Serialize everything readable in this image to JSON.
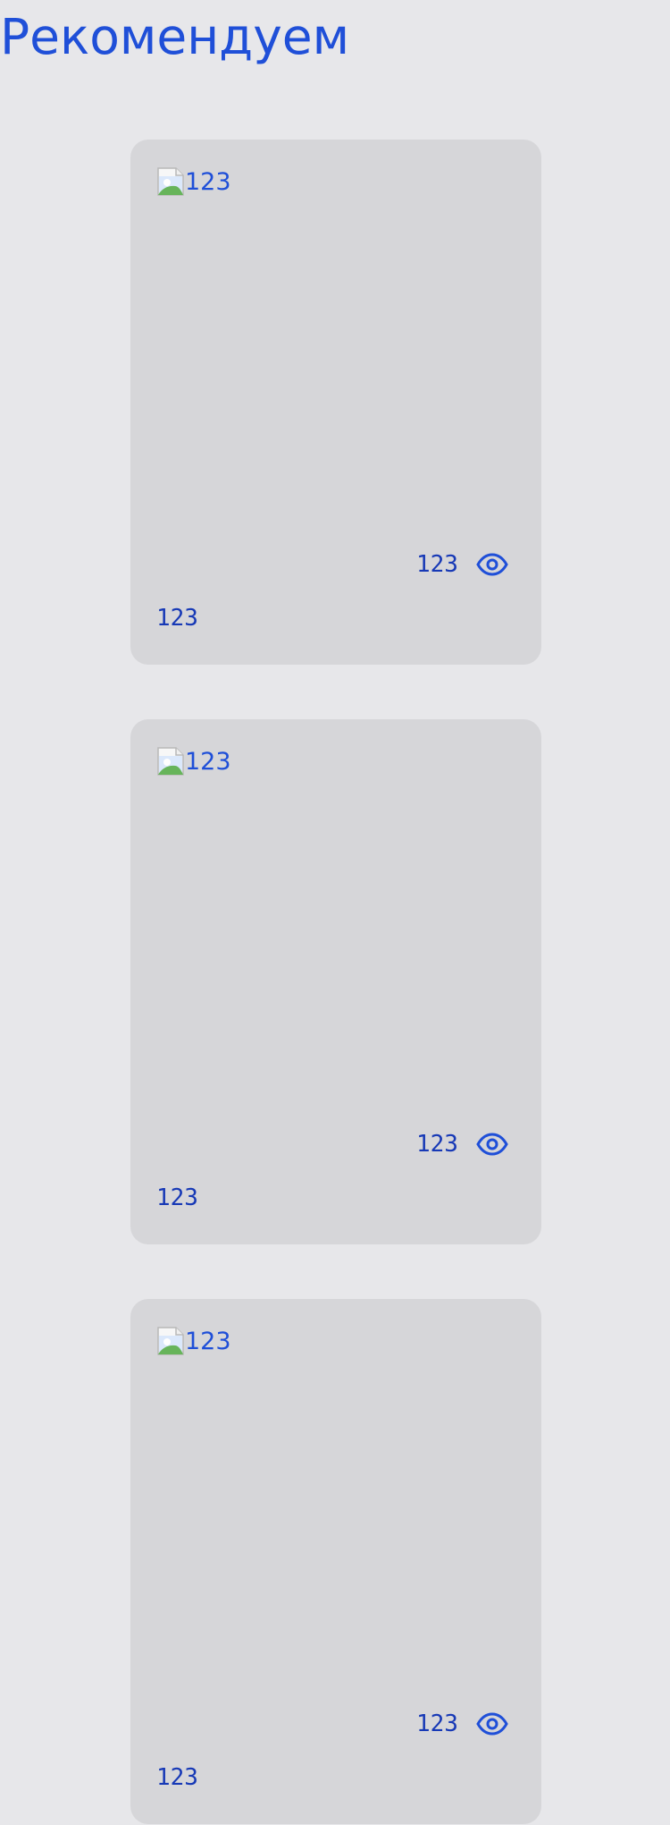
{
  "section": {
    "title": "Рекомендуем"
  },
  "cards": [
    {
      "image_alt": "123",
      "views": "123",
      "caption": "123"
    },
    {
      "image_alt": "123",
      "views": "123",
      "caption": "123"
    },
    {
      "image_alt": "123",
      "views": "123",
      "caption": "123"
    }
  ],
  "colors": {
    "background": "#e7e7ea",
    "card": "#d6d6d9",
    "accent": "#1f4fd8",
    "text": "#1739b6"
  },
  "icons": {
    "image": "broken-image-icon",
    "views": "eye-icon"
  }
}
